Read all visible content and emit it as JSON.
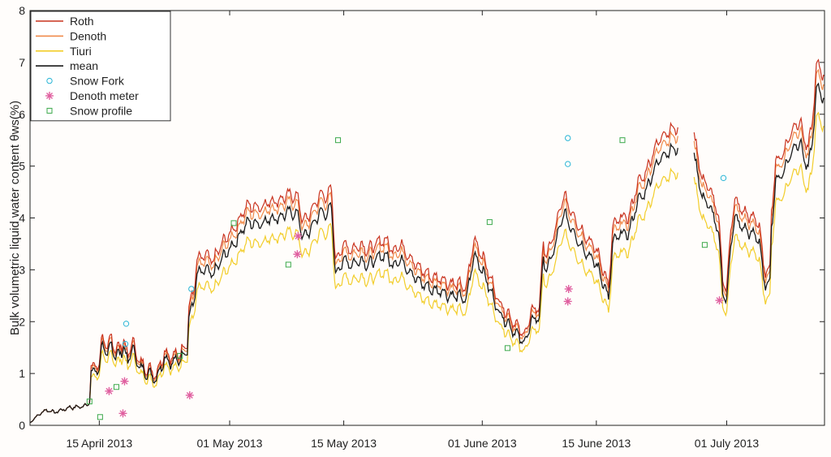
{
  "chart_data": {
    "type": "line",
    "ylabel": "Bulk volumetric liquid water content θws(%)",
    "xlabel": "",
    "ylim": [
      0,
      8
    ],
    "yticks": [
      0,
      1,
      2,
      3,
      4,
      5,
      6,
      7,
      8
    ],
    "xlim_days": [
      -8.5,
      89
    ],
    "xticks": [
      {
        "label": "15 April 2013",
        "day": 0
      },
      {
        "label": "01 May 2013",
        "day": 16
      },
      {
        "label": "15 May 2013",
        "day": 30
      },
      {
        "label": "01 June 2013",
        "day": 47
      },
      {
        "label": "15 June 2013",
        "day": 61
      },
      {
        "label": "01 July 2013",
        "day": 77
      }
    ],
    "legend_position": "top-left",
    "grid": false,
    "series": [
      {
        "name": "Roth",
        "color": "#c9331f",
        "offset": 0.13,
        "scale": 1.05
      },
      {
        "name": "Denoth",
        "color": "#f08a4a",
        "offset": 0.07,
        "scale": 1.03
      },
      {
        "name": "Tiuri",
        "color": "#f2cd2a",
        "offset": -0.1,
        "scale": 0.93
      },
      {
        "name": "mean",
        "color": "#1a1a1a",
        "offset": 0.0,
        "scale": 1.0
      }
    ],
    "mean_base": [
      [
        -8.5,
        0.05
      ],
      [
        -7.5,
        0.2
      ],
      [
        -6.5,
        0.3
      ],
      [
        -5.5,
        0.25
      ],
      [
        -4.5,
        0.3
      ],
      [
        -3.5,
        0.35
      ],
      [
        -2.5,
        0.35
      ],
      [
        -1.5,
        0.4
      ],
      [
        -1.2,
        0.45
      ],
      [
        -1.0,
        1.0
      ],
      [
        0,
        1.1
      ],
      [
        0.4,
        1.6
      ],
      [
        1,
        1.3
      ],
      [
        1.5,
        1.6
      ],
      [
        2,
        1.3
      ],
      [
        3,
        1.5
      ],
      [
        3.5,
        1.2
      ],
      [
        4,
        1.5
      ],
      [
        5,
        1.1
      ],
      [
        6,
        1.0
      ],
      [
        7,
        0.9
      ],
      [
        8,
        1.3
      ],
      [
        9,
        1.2
      ],
      [
        10,
        1.3
      ],
      [
        10.5,
        1.4
      ],
      [
        10.8,
        1.5
      ],
      [
        11,
        2.1
      ],
      [
        11.5,
        2.3
      ],
      [
        12,
        2.9
      ],
      [
        13,
        3.0
      ],
      [
        14,
        2.9
      ],
      [
        15,
        3.2
      ],
      [
        16,
        3.4
      ],
      [
        17,
        3.6
      ],
      [
        18,
        3.9
      ],
      [
        19,
        3.9
      ],
      [
        20,
        3.9
      ],
      [
        21,
        4.0
      ],
      [
        22,
        4.0
      ],
      [
        23,
        4.1
      ],
      [
        24,
        4.1
      ],
      [
        24.5,
        4.0
      ],
      [
        25,
        3.6
      ],
      [
        26,
        3.8
      ],
      [
        27,
        4.1
      ],
      [
        28,
        4.1
      ],
      [
        28.5,
        4.2
      ],
      [
        29,
        2.9
      ],
      [
        30,
        3.2
      ],
      [
        31,
        3.1
      ],
      [
        32,
        3.2
      ],
      [
        33,
        3.1
      ],
      [
        34,
        3.2
      ],
      [
        35,
        3.3
      ],
      [
        36,
        3.1
      ],
      [
        37,
        3.2
      ],
      [
        38,
        3.0
      ],
      [
        39,
        2.8
      ],
      [
        40,
        2.7
      ],
      [
        41,
        2.6
      ],
      [
        42,
        2.6
      ],
      [
        43,
        2.5
      ],
      [
        44,
        2.5
      ],
      [
        45,
        2.4
      ],
      [
        46,
        3.3
      ],
      [
        47,
        3.0
      ],
      [
        48,
        2.6
      ],
      [
        49,
        2.2
      ],
      [
        50,
        2.0
      ],
      [
        51,
        1.8
      ],
      [
        52,
        1.6
      ],
      [
        52.5,
        1.7
      ],
      [
        53,
        2.0
      ],
      [
        54,
        2.1
      ],
      [
        54.5,
        3.2
      ],
      [
        55,
        3.0
      ],
      [
        56,
        3.5
      ],
      [
        57,
        4.1
      ],
      [
        58,
        3.8
      ],
      [
        59,
        3.5
      ],
      [
        60,
        3.3
      ],
      [
        61,
        3.1
      ],
      [
        62,
        2.7
      ],
      [
        62.5,
        2.4
      ],
      [
        63,
        3.5
      ],
      [
        64,
        3.7
      ],
      [
        65,
        3.7
      ],
      [
        66,
        4.3
      ],
      [
        67,
        4.5
      ],
      [
        68,
        4.9
      ],
      [
        69,
        5.2
      ],
      [
        70,
        5.3
      ],
      [
        71,
        5.35
      ],
      [
        71.5,
        null
      ],
      [
        72.5,
        null
      ],
      [
        73,
        5.2
      ],
      [
        74,
        4.4
      ],
      [
        75,
        4.2
      ],
      [
        76,
        3.7
      ],
      [
        76.5,
        2.6
      ],
      [
        77,
        2.4
      ],
      [
        77.5,
        3.5
      ],
      [
        78,
        4.0
      ],
      [
        79,
        3.8
      ],
      [
        80,
        3.7
      ],
      [
        81,
        3.6
      ],
      [
        81.5,
        2.8
      ],
      [
        82,
        2.7
      ],
      [
        82.3,
        2.8
      ],
      [
        82.5,
        3.8
      ],
      [
        83,
        4.7
      ],
      [
        84,
        4.9
      ],
      [
        85,
        5.3
      ],
      [
        86,
        5.5
      ],
      [
        86.5,
        5.1
      ],
      [
        87,
        5.0
      ],
      [
        87.5,
        5.4
      ],
      [
        88,
        6.5
      ],
      [
        89,
        6.3
      ]
    ],
    "markers": [
      {
        "name": "Snow Fork",
        "color": "#29b5d6",
        "shape": "circle",
        "points": [
          [
            3.3,
            1.96
          ],
          [
            3.2,
            1.57
          ],
          [
            11.3,
            2.63
          ],
          [
            57.5,
            5.54
          ],
          [
            57.5,
            5.04
          ],
          [
            76.6,
            4.77
          ]
        ]
      },
      {
        "name": "Denoth meter",
        "color": "#e060a0",
        "shape": "asterisk",
        "points": [
          [
            1.2,
            0.66
          ],
          [
            3.1,
            0.85
          ],
          [
            2.9,
            0.23
          ],
          [
            11.1,
            0.58
          ],
          [
            24.4,
            3.65
          ],
          [
            24.3,
            3.3
          ],
          [
            57.6,
            2.63
          ],
          [
            57.5,
            2.39
          ],
          [
            76.1,
            2.41
          ]
        ]
      },
      {
        "name": "Snow profile",
        "color": "#3aa84a",
        "shape": "square",
        "points": [
          [
            -1.2,
            0.46
          ],
          [
            0.1,
            0.16
          ],
          [
            2.1,
            0.74
          ],
          [
            9.9,
            1.34
          ],
          [
            16.5,
            3.9
          ],
          [
            23.2,
            3.1
          ],
          [
            29.3,
            5.5
          ],
          [
            47.9,
            3.92
          ],
          [
            50.1,
            1.49
          ],
          [
            64.2,
            5.5
          ],
          [
            74.3,
            3.48
          ]
        ]
      }
    ]
  }
}
